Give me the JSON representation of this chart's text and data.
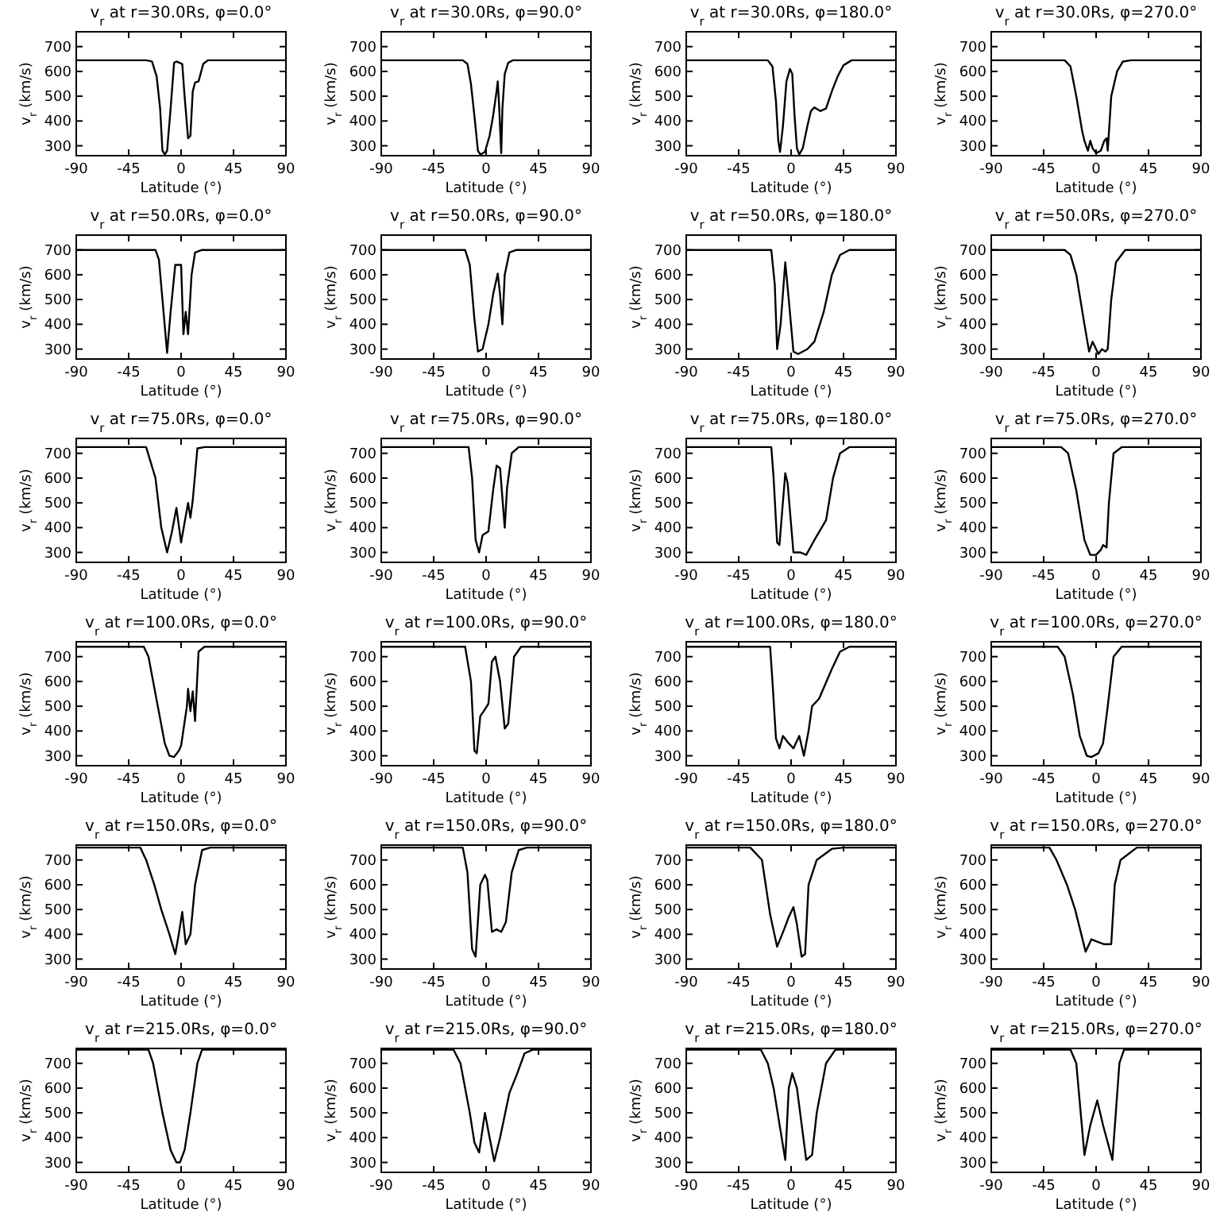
{
  "chart_data": [
    {
      "type": "line",
      "title": "v$_{r}$ at r=30.0Rs, φ=0.0°",
      "xlabel": "Latitude (°)",
      "ylabel": "v$_{r}$ (km/s)",
      "xlim": [
        -90,
        90
      ],
      "ylim": [
        260,
        760
      ],
      "xticks": [
        -90,
        -45,
        0,
        45,
        90
      ],
      "yticks": [
        300,
        400,
        500,
        600,
        700
      ],
      "series": [
        {
          "color": "#000000",
          "x": [
            -90,
            -30,
            -25,
            -21,
            -18,
            -16,
            -14,
            -12,
            -9,
            -6,
            -4,
            1,
            3,
            6,
            8,
            10,
            12,
            15,
            19,
            23,
            90
          ],
          "values": [
            645,
            645,
            640,
            580,
            450,
            280,
            265,
            280,
            450,
            635,
            640,
            630,
            500,
            330,
            340,
            520,
            555,
            560,
            630,
            645,
            645
          ]
        }
      ]
    },
    {
      "type": "line",
      "title": "v$_{r}$ at r=30.0Rs, φ=90.0°",
      "xlabel": "Latitude (°)",
      "ylabel": "v$_{r}$ (km/s)",
      "xlim": [
        -90,
        90
      ],
      "ylim": [
        260,
        760
      ],
      "xticks": [
        -90,
        -45,
        0,
        45,
        90
      ],
      "yticks": [
        300,
        400,
        500,
        600,
        700
      ],
      "series": [
        {
          "color": "#000000",
          "x": [
            -90,
            -20,
            -16,
            -13,
            -10,
            -7,
            -5,
            -1,
            3,
            6,
            9,
            10,
            11,
            13,
            14,
            16,
            19,
            23,
            90
          ],
          "values": [
            645,
            645,
            630,
            550,
            420,
            280,
            265,
            275,
            340,
            420,
            520,
            560,
            480,
            270,
            450,
            590,
            635,
            645,
            645
          ]
        }
      ]
    },
    {
      "type": "line",
      "title": "v$_{r}$ at r=30.0Rs, φ=180.0°",
      "xlabel": "Latitude (°)",
      "ylabel": "v$_{r}$ (km/s)",
      "xlim": [
        -90,
        90
      ],
      "ylim": [
        260,
        760
      ],
      "xticks": [
        -90,
        -45,
        0,
        45,
        90
      ],
      "yticks": [
        300,
        400,
        500,
        600,
        700
      ],
      "series": [
        {
          "color": "#000000",
          "x": [
            -90,
            -20,
            -16,
            -13,
            -11,
            -9.5,
            -7,
            -4,
            -1,
            1,
            3,
            5,
            7,
            10,
            14,
            17,
            20,
            25,
            30,
            35,
            40,
            45,
            52,
            90
          ],
          "values": [
            645,
            645,
            620,
            480,
            320,
            275,
            380,
            560,
            610,
            590,
            420,
            290,
            265,
            290,
            380,
            440,
            455,
            440,
            450,
            520,
            580,
            625,
            645,
            645
          ]
        }
      ]
    },
    {
      "type": "line",
      "title": "v$_{r}$ at r=30.0Rs, φ=270.0°",
      "xlabel": "Latitude (°)",
      "ylabel": "v$_{r}$ (km/s)",
      "xlim": [
        -90,
        90
      ],
      "ylim": [
        260,
        760
      ],
      "xticks": [
        -90,
        -45,
        0,
        45,
        90
      ],
      "yticks": [
        300,
        400,
        500,
        600,
        700
      ],
      "series": [
        {
          "color": "#000000",
          "x": [
            -90,
            -27,
            -22,
            -17,
            -12,
            -10,
            -7,
            -5,
            -3,
            0,
            4,
            7,
            9,
            10,
            13,
            18,
            23,
            30,
            90
          ],
          "values": [
            645,
            645,
            620,
            500,
            360,
            320,
            280,
            320,
            290,
            270,
            280,
            320,
            330,
            280,
            500,
            600,
            640,
            645,
            645
          ]
        }
      ]
    },
    {
      "type": "line",
      "title": "v$_{r}$ at r=50.0Rs, φ=0.0°",
      "xlabel": "Latitude (°)",
      "ylabel": "v$_{r}$ (km/s)",
      "xlim": [
        -90,
        90
      ],
      "ylim": [
        260,
        760
      ],
      "xticks": [
        -90,
        -45,
        0,
        45,
        90
      ],
      "yticks": [
        300,
        400,
        500,
        600,
        700
      ],
      "series": [
        {
          "color": "#000000",
          "x": [
            -90,
            -22,
            -19,
            -16,
            -12,
            -9,
            -5,
            0,
            2,
            4,
            6,
            9,
            12,
            18,
            90
          ],
          "values": [
            700,
            700,
            660,
            500,
            285,
            450,
            640,
            640,
            360,
            450,
            360,
            600,
            690,
            700,
            700
          ]
        }
      ]
    },
    {
      "type": "line",
      "title": "v$_{r}$ at r=50.0Rs, φ=90.0°",
      "xlabel": "Latitude (°)",
      "ylabel": "v$_{r}$ (km/s)",
      "xlim": [
        -90,
        90
      ],
      "ylim": [
        260,
        760
      ],
      "xticks": [
        -90,
        -45,
        0,
        45,
        90
      ],
      "yticks": [
        300,
        400,
        500,
        600,
        700
      ],
      "series": [
        {
          "color": "#000000",
          "x": [
            -90,
            -18,
            -14,
            -10,
            -7,
            -3,
            2,
            6,
            10,
            12,
            14,
            16,
            20,
            26,
            90
          ],
          "values": [
            700,
            700,
            640,
            420,
            290,
            300,
            400,
            520,
            605,
            520,
            400,
            600,
            690,
            700,
            700
          ]
        }
      ]
    },
    {
      "type": "line",
      "title": "v$_{r}$ at r=50.0Rs, φ=180.0°",
      "xlabel": "Latitude (°)",
      "ylabel": "v$_{r}$ (km/s)",
      "xlim": [
        -90,
        90
      ],
      "ylim": [
        260,
        760
      ],
      "xticks": [
        -90,
        -45,
        0,
        45,
        90
      ],
      "yticks": [
        300,
        400,
        500,
        600,
        700
      ],
      "series": [
        {
          "color": "#000000",
          "x": [
            -90,
            -17,
            -14,
            -12,
            -9,
            -5,
            -2,
            2,
            6,
            14,
            20,
            28,
            35,
            42,
            50,
            90
          ],
          "values": [
            700,
            700,
            560,
            300,
            400,
            650,
            500,
            290,
            280,
            300,
            330,
            450,
            600,
            680,
            700,
            700
          ]
        }
      ]
    },
    {
      "type": "line",
      "title": "v$_{r}$ at r=50.0Rs, φ=270.0°",
      "xlabel": "Latitude (°)",
      "ylabel": "v$_{r}$ (km/s)",
      "xlim": [
        -90,
        90
      ],
      "ylim": [
        260,
        760
      ],
      "xticks": [
        -90,
        -45,
        0,
        45,
        90
      ],
      "yticks": [
        300,
        400,
        500,
        600,
        700
      ],
      "series": [
        {
          "color": "#000000",
          "x": [
            -90,
            -27,
            -22,
            -17,
            -10,
            -6,
            -3,
            0,
            2,
            5,
            8,
            10,
            13,
            17,
            25,
            90
          ],
          "values": [
            700,
            700,
            680,
            600,
            400,
            290,
            330,
            300,
            280,
            300,
            290,
            300,
            500,
            650,
            700,
            700
          ]
        }
      ]
    },
    {
      "type": "line",
      "title": "v$_{r}$ at r=75.0Rs, φ=0.0°",
      "xlabel": "Latitude (°)",
      "ylabel": "v$_{r}$ (km/s)",
      "xlim": [
        -90,
        90
      ],
      "ylim": [
        260,
        760
      ],
      "xticks": [
        -90,
        -45,
        0,
        45,
        90
      ],
      "yticks": [
        300,
        400,
        500,
        600,
        700
      ],
      "series": [
        {
          "color": "#000000",
          "x": [
            -90,
            -30,
            -22,
            -17,
            -12,
            -8,
            -4,
            0,
            3,
            6,
            8,
            10,
            14,
            20,
            90
          ],
          "values": [
            725,
            725,
            600,
            400,
            300,
            380,
            480,
            340,
            420,
            500,
            440,
            510,
            720,
            725,
            725
          ]
        }
      ]
    },
    {
      "type": "line",
      "title": "v$_{r}$ at r=75.0Rs, φ=90.0°",
      "xlabel": "Latitude (°)",
      "ylabel": "v$_{r}$ (km/s)",
      "xlim": [
        -90,
        90
      ],
      "ylim": [
        260,
        760
      ],
      "xticks": [
        -90,
        -45,
        0,
        45,
        90
      ],
      "yticks": [
        300,
        400,
        500,
        600,
        700
      ],
      "series": [
        {
          "color": "#000000",
          "x": [
            -90,
            -15,
            -12,
            -9,
            -6,
            -3,
            2,
            6,
            9,
            12,
            16,
            18,
            22,
            28,
            90
          ],
          "values": [
            725,
            725,
            600,
            350,
            300,
            370,
            385,
            550,
            650,
            640,
            400,
            560,
            700,
            725,
            725
          ]
        }
      ]
    },
    {
      "type": "line",
      "title": "v$_{r}$ at r=75.0Rs, φ=180.0°",
      "xlabel": "Latitude (°)",
      "ylabel": "v$_{r}$ (km/s)",
      "xlim": [
        -90,
        90
      ],
      "ylim": [
        260,
        760
      ],
      "xticks": [
        -90,
        -45,
        0,
        45,
        90
      ],
      "yticks": [
        300,
        400,
        500,
        600,
        700
      ],
      "series": [
        {
          "color": "#000000",
          "x": [
            -90,
            -17,
            -15,
            -12,
            -10,
            -5,
            -3,
            2,
            8,
            13,
            20,
            30,
            36,
            42,
            50,
            90
          ],
          "values": [
            725,
            725,
            600,
            340,
            330,
            620,
            580,
            300,
            300,
            290,
            350,
            430,
            600,
            700,
            725,
            725
          ]
        }
      ]
    },
    {
      "type": "line",
      "title": "v$_{r}$ at r=75.0Rs, φ=270.0°",
      "xlabel": "Latitude (°)",
      "ylabel": "v$_{r}$ (km/s)",
      "xlim": [
        -90,
        90
      ],
      "ylim": [
        260,
        760
      ],
      "xticks": [
        -90,
        -45,
        0,
        45,
        90
      ],
      "yticks": [
        300,
        400,
        500,
        600,
        700
      ],
      "series": [
        {
          "color": "#000000",
          "x": [
            -90,
            -30,
            -24,
            -17,
            -10,
            -5,
            0,
            4,
            6,
            9,
            11,
            15,
            22,
            90
          ],
          "values": [
            725,
            725,
            700,
            550,
            350,
            290,
            290,
            310,
            330,
            320,
            500,
            700,
            725,
            725
          ]
        }
      ]
    },
    {
      "type": "line",
      "title": "v$_{r}$ at r=100.0Rs, φ=0.0°",
      "xlabel": "Latitude (°)",
      "ylabel": "v$_{r}$ (km/s)",
      "xlim": [
        -90,
        90
      ],
      "ylim": [
        260,
        760
      ],
      "xticks": [
        -90,
        -45,
        0,
        45,
        90
      ],
      "yticks": [
        300,
        400,
        500,
        600,
        700
      ],
      "series": [
        {
          "color": "#000000",
          "x": [
            -90,
            -32,
            -28,
            -20,
            -14,
            -10,
            -6,
            -2,
            0,
            5,
            6,
            8,
            10,
            12,
            15,
            20,
            90
          ],
          "values": [
            740,
            740,
            700,
            500,
            350,
            300,
            295,
            320,
            340,
            500,
            570,
            480,
            560,
            440,
            720,
            740,
            740
          ]
        }
      ]
    },
    {
      "type": "line",
      "title": "v$_{r}$ at r=100.0Rs, φ=90.0°",
      "xlabel": "Latitude (°)",
      "ylabel": "v$_{r}$ (km/s)",
      "xlim": [
        -90,
        90
      ],
      "ylim": [
        260,
        760
      ],
      "xticks": [
        -90,
        -45,
        0,
        45,
        90
      ],
      "yticks": [
        300,
        400,
        500,
        600,
        700
      ],
      "series": [
        {
          "color": "#000000",
          "x": [
            -90,
            -18,
            -13,
            -10,
            -8,
            -5,
            -2,
            2,
            5,
            8,
            12,
            16,
            19,
            24,
            30,
            90
          ],
          "values": [
            740,
            740,
            600,
            320,
            310,
            460,
            480,
            510,
            680,
            700,
            600,
            410,
            430,
            700,
            740,
            740
          ]
        }
      ]
    },
    {
      "type": "line",
      "title": "v$_{r}$ at r=100.0Rs, φ=180.0°",
      "xlabel": "Latitude (°)",
      "ylabel": "v$_{r}$ (km/s)",
      "xlim": [
        -90,
        90
      ],
      "ylim": [
        260,
        760
      ],
      "xticks": [
        -90,
        -45,
        0,
        45,
        90
      ],
      "yticks": [
        300,
        400,
        500,
        600,
        700
      ],
      "series": [
        {
          "color": "#000000",
          "x": [
            -90,
            -18,
            -16,
            -13,
            -10,
            -7,
            -2,
            2,
            7,
            11,
            15,
            18,
            24,
            35,
            42,
            50,
            90
          ],
          "values": [
            740,
            740,
            600,
            370,
            330,
            380,
            350,
            330,
            380,
            300,
            400,
            500,
            530,
            650,
            720,
            740,
            740
          ]
        }
      ]
    },
    {
      "type": "line",
      "title": "v$_{r}$ at r=100.0Rs, φ=270.0°",
      "xlabel": "Latitude (°)",
      "ylabel": "v$_{r}$ (km/s)",
      "xlim": [
        -90,
        90
      ],
      "ylim": [
        260,
        760
      ],
      "xticks": [
        -90,
        -45,
        0,
        45,
        90
      ],
      "yticks": [
        300,
        400,
        500,
        600,
        700
      ],
      "series": [
        {
          "color": "#000000",
          "x": [
            -90,
            -33,
            -27,
            -20,
            -14,
            -8,
            -4,
            2,
            6,
            10,
            15,
            22,
            90
          ],
          "values": [
            740,
            740,
            700,
            550,
            380,
            300,
            295,
            310,
            350,
            500,
            700,
            740,
            740
          ]
        }
      ]
    },
    {
      "type": "line",
      "title": "v$_{r}$ at r=150.0Rs, φ=0.0°",
      "xlabel": "Latitude (°)",
      "ylabel": "v$_{r}$ (km/s)",
      "xlim": [
        -90,
        90
      ],
      "ylim": [
        260,
        760
      ],
      "xticks": [
        -90,
        -45,
        0,
        45,
        90
      ],
      "yticks": [
        300,
        400,
        500,
        600,
        700
      ],
      "series": [
        {
          "color": "#000000",
          "x": [
            -90,
            -35,
            -30,
            -23,
            -17,
            -10,
            -5,
            -2,
            1,
            4,
            8,
            12,
            18,
            25,
            90
          ],
          "values": [
            750,
            750,
            700,
            600,
            500,
            400,
            320,
            400,
            490,
            360,
            400,
            600,
            740,
            750,
            750
          ]
        }
      ]
    },
    {
      "type": "line",
      "title": "v$_{r}$ at r=150.0Rs, φ=90.0°",
      "xlabel": "Latitude (°)",
      "ylabel": "v$_{r}$ (km/s)",
      "xlim": [
        -90,
        90
      ],
      "ylim": [
        260,
        760
      ],
      "xticks": [
        -90,
        -45,
        0,
        45,
        90
      ],
      "yticks": [
        300,
        400,
        500,
        600,
        700
      ],
      "series": [
        {
          "color": "#000000",
          "x": [
            -90,
            -20,
            -16,
            -12,
            -9,
            -5,
            -1,
            1,
            5,
            9,
            13,
            17,
            22,
            28,
            35,
            90
          ],
          "values": [
            750,
            750,
            650,
            340,
            310,
            600,
            640,
            620,
            410,
            420,
            410,
            450,
            650,
            740,
            750,
            750
          ]
        }
      ]
    },
    {
      "type": "line",
      "title": "v$_{r}$ at r=150.0Rs, φ=180.0°",
      "xlabel": "Latitude (°)",
      "ylabel": "v$_{r}$ (km/s)",
      "xlim": [
        -90,
        90
      ],
      "ylim": [
        260,
        760
      ],
      "xticks": [
        -90,
        -45,
        0,
        45,
        90
      ],
      "yticks": [
        300,
        400,
        500,
        600,
        700
      ],
      "series": [
        {
          "color": "#000000",
          "x": [
            -90,
            -35,
            -25,
            -18,
            -12,
            -6,
            -2,
            2,
            5,
            9,
            12,
            15,
            22,
            35,
            45,
            90
          ],
          "values": [
            750,
            750,
            700,
            480,
            350,
            420,
            470,
            510,
            440,
            310,
            320,
            600,
            700,
            745,
            750,
            750
          ]
        }
      ]
    },
    {
      "type": "line",
      "title": "v$_{r}$ at r=150.0Rs, φ=270.0°",
      "xlabel": "Latitude (°)",
      "ylabel": "v$_{r}$ (km/s)",
      "xlim": [
        -90,
        90
      ],
      "ylim": [
        260,
        760
      ],
      "xticks": [
        -90,
        -45,
        0,
        45,
        90
      ],
      "yticks": [
        300,
        400,
        500,
        600,
        700
      ],
      "series": [
        {
          "color": "#000000",
          "x": [
            -90,
            -40,
            -34,
            -25,
            -18,
            -9,
            -4,
            1,
            7,
            13,
            16,
            21,
            35,
            90
          ],
          "values": [
            750,
            750,
            700,
            600,
            500,
            330,
            380,
            370,
            360,
            360,
            600,
            700,
            750,
            750
          ]
        }
      ]
    },
    {
      "type": "line",
      "title": "v$_{r}$ at r=215.0Rs, φ=0.0°",
      "xlabel": "Latitude (°)",
      "ylabel": "v$_{r}$ (km/s)",
      "xlim": [
        -90,
        90
      ],
      "ylim": [
        260,
        760
      ],
      "xticks": [
        -90,
        -45,
        0,
        45,
        90
      ],
      "yticks": [
        300,
        400,
        500,
        600,
        700
      ],
      "series": [
        {
          "color": "#000000",
          "x": [
            -90,
            -28,
            -24,
            -16,
            -9,
            -4,
            -1,
            3,
            8,
            14,
            18,
            90
          ],
          "values": [
            755,
            755,
            700,
            500,
            350,
            300,
            300,
            350,
            500,
            700,
            755,
            755
          ]
        }
      ]
    },
    {
      "type": "line",
      "title": "v$_{r}$ at r=215.0Rs, φ=90.0°",
      "xlabel": "Latitude (°)",
      "ylabel": "v$_{r}$ (km/s)",
      "xlim": [
        -90,
        90
      ],
      "ylim": [
        260,
        760
      ],
      "xticks": [
        -90,
        -45,
        0,
        45,
        90
      ],
      "yticks": [
        300,
        400,
        500,
        600,
        700
      ],
      "series": [
        {
          "color": "#000000",
          "x": [
            -90,
            -28,
            -22,
            -14,
            -10,
            -6,
            -1,
            3,
            7,
            12,
            20,
            26,
            33,
            40,
            90
          ],
          "values": [
            755,
            755,
            700,
            500,
            380,
            340,
            500,
            400,
            305,
            400,
            580,
            650,
            740,
            755,
            755
          ]
        }
      ]
    },
    {
      "type": "line",
      "title": "v$_{r}$ at r=215.0Rs, φ=180.0°",
      "xlabel": "Latitude (°)",
      "ylabel": "v$_{r}$ (km/s)",
      "xlim": [
        -90,
        90
      ],
      "ylim": [
        260,
        760
      ],
      "xticks": [
        -90,
        -45,
        0,
        45,
        90
      ],
      "yticks": [
        300,
        400,
        500,
        600,
        700
      ],
      "series": [
        {
          "color": "#000000",
          "x": [
            -90,
            -26,
            -20,
            -15,
            -5,
            -2,
            1,
            5,
            13,
            18,
            22,
            30,
            38,
            90
          ],
          "values": [
            755,
            755,
            700,
            600,
            310,
            600,
            660,
            600,
            310,
            330,
            500,
            700,
            755,
            755
          ]
        }
      ]
    },
    {
      "type": "line",
      "title": "v$_{r}$ at r=215.0Rs, φ=270.0°",
      "xlabel": "Latitude (°)",
      "ylabel": "v$_{r}$ (km/s)",
      "xlim": [
        -90,
        90
      ],
      "ylim": [
        260,
        760
      ],
      "xticks": [
        -90,
        -45,
        0,
        45,
        90
      ],
      "yticks": [
        300,
        400,
        500,
        600,
        700
      ],
      "series": [
        {
          "color": "#000000",
          "x": [
            -90,
            -22,
            -17,
            -10,
            -5,
            1,
            6,
            14,
            20,
            24,
            90
          ],
          "values": [
            755,
            755,
            700,
            330,
            450,
            550,
            450,
            310,
            700,
            755,
            755
          ]
        }
      ]
    }
  ]
}
